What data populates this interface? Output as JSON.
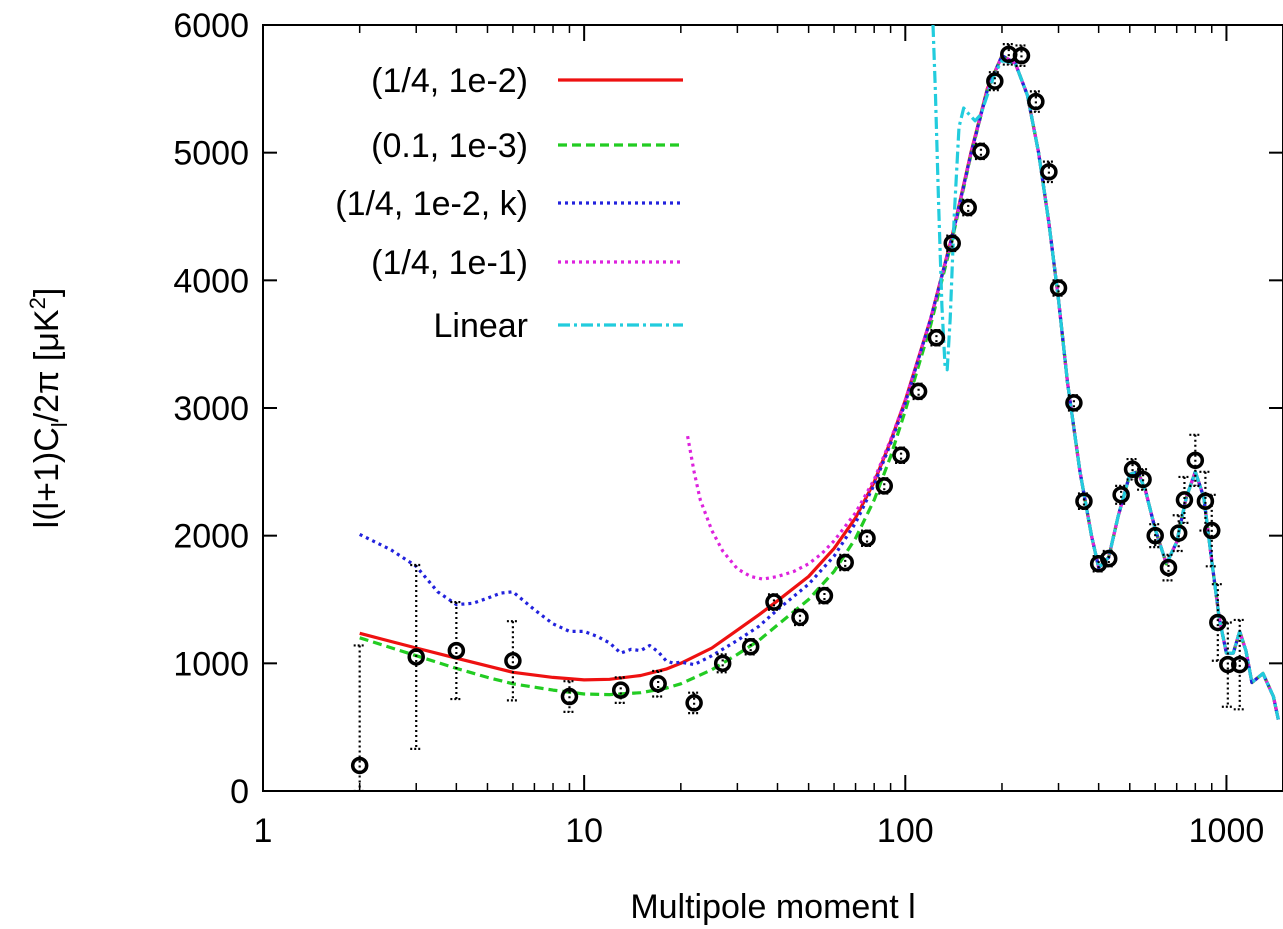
{
  "chart_data": {
    "type": "line",
    "xlabel": "Multipole moment l",
    "ylabel_parts": {
      "prefix": "l(l+1)C",
      "sub": "l",
      "mid": "/2π [μK",
      "sup": "2",
      "suffix": "]"
    },
    "x_scale": "log",
    "xlim": [
      1,
      1500
    ],
    "ylim": [
      0,
      6000
    ],
    "x_ticks": [
      1,
      10,
      100,
      1000
    ],
    "x_tick_labels": [
      "1",
      "10",
      "100",
      "1000"
    ],
    "y_ticks": [
      0,
      1000,
      2000,
      3000,
      4000,
      5000,
      6000
    ],
    "y_tick_labels": [
      "0",
      "1000",
      "2000",
      "3000",
      "4000",
      "5000",
      "6000"
    ],
    "legend_position": "top-left",
    "series": [
      {
        "name": "(1/4, 1e-2)",
        "color": "#ee1111",
        "dash": "solid",
        "x": [
          2,
          3,
          4,
          5,
          6,
          8,
          10,
          12,
          15,
          18,
          20,
          25,
          30,
          35,
          40,
          50,
          60,
          70,
          80,
          90,
          100,
          120,
          140,
          160,
          180,
          200,
          220,
          240,
          260,
          280,
          300,
          320,
          350,
          380,
          400,
          430,
          460,
          500,
          530,
          560,
          600,
          650,
          700,
          750,
          800,
          850,
          900,
          950,
          1000,
          1050,
          1100,
          1150,
          1200,
          1300,
          1400,
          1450
        ],
        "y": [
          1235,
          1120,
          1040,
          980,
          930,
          890,
          870,
          875,
          905,
          955,
          1000,
          1120,
          1260,
          1380,
          1490,
          1680,
          1900,
          2140,
          2420,
          2740,
          3060,
          3700,
          4350,
          5000,
          5500,
          5760,
          5700,
          5450,
          5000,
          4450,
          3850,
          3200,
          2500,
          2000,
          1750,
          1830,
          2150,
          2480,
          2500,
          2350,
          2050,
          1780,
          1950,
          2300,
          2500,
          2300,
          1800,
          1350,
          1080,
          1080,
          1250,
          1100,
          850,
          920,
          740,
          560
        ]
      },
      {
        "name": "(0.1, 1e-3)",
        "color": "#22cc22",
        "dash": "dashed",
        "x": [
          2,
          3,
          4,
          5,
          6,
          8,
          10,
          12,
          15,
          18,
          20,
          25,
          30,
          35,
          40,
          50,
          60,
          70,
          80,
          90,
          100,
          120,
          140,
          160,
          180,
          200,
          220,
          240,
          260,
          280,
          300,
          320,
          350,
          380,
          400,
          430,
          460,
          500,
          530,
          560,
          600,
          650,
          700,
          750,
          800,
          850,
          900,
          950,
          1000,
          1050,
          1100,
          1150,
          1200,
          1300,
          1400,
          1450
        ],
        "y": [
          1200,
          1060,
          960,
          890,
          840,
          790,
          760,
          755,
          770,
          805,
          840,
          950,
          1070,
          1180,
          1300,
          1500,
          1720,
          1980,
          2280,
          2620,
          2980,
          3650,
          4320,
          4980,
          5490,
          5760,
          5700,
          5450,
          5000,
          4450,
          3850,
          3200,
          2500,
          2000,
          1750,
          1830,
          2150,
          2480,
          2500,
          2350,
          2050,
          1780,
          1950,
          2300,
          2500,
          2300,
          1800,
          1350,
          1080,
          1080,
          1250,
          1100,
          850,
          920,
          740,
          560
        ]
      },
      {
        "name": "(1/4, 1e-2, k)",
        "color": "#2222dd",
        "dash": "dotted",
        "x": [
          2,
          2.5,
          3,
          3.5,
          4,
          4.5,
          5,
          5.5,
          6,
          7,
          8,
          9,
          10,
          11,
          12,
          13,
          14,
          15,
          16,
          17,
          18,
          19,
          20,
          22,
          25,
          30,
          35,
          40,
          50,
          60,
          70,
          80,
          90,
          100,
          120,
          140,
          160,
          180,
          200,
          220,
          240,
          260,
          280,
          300,
          320,
          350,
          380,
          400,
          430,
          460,
          500,
          530,
          560,
          600,
          650,
          700,
          750,
          800,
          850,
          900,
          950,
          1000,
          1050,
          1100,
          1150,
          1200,
          1300,
          1400,
          1450
        ],
        "y": [
          2010,
          1890,
          1760,
          1560,
          1460,
          1470,
          1510,
          1550,
          1560,
          1420,
          1310,
          1250,
          1250,
          1210,
          1160,
          1080,
          1110,
          1100,
          1140,
          1090,
          1020,
          1000,
          1010,
          990,
          1060,
          1180,
          1290,
          1420,
          1620,
          1840,
          2100,
          2400,
          2720,
          3040,
          3700,
          4340,
          4990,
          5490,
          5760,
          5700,
          5450,
          5000,
          4450,
          3850,
          3200,
          2500,
          2000,
          1750,
          1830,
          2150,
          2480,
          2500,
          2350,
          2050,
          1780,
          1950,
          2300,
          2500,
          2300,
          1800,
          1350,
          1080,
          1080,
          1250,
          1100,
          850,
          920,
          740,
          560
        ]
      },
      {
        "name": "(1/4, 1e-1)",
        "color": "#dd22dd",
        "dash": "dotted",
        "x": [
          21,
          22,
          23,
          25,
          27,
          30,
          33,
          36,
          40,
          45,
          50,
          55,
          60,
          70,
          80,
          90,
          100,
          120,
          140,
          160,
          180,
          200,
          220,
          240,
          260,
          280,
          300,
          320,
          350,
          380,
          400,
          430,
          460,
          500,
          530,
          560,
          600,
          650,
          700,
          750,
          800,
          850,
          900,
          950,
          1000,
          1050,
          1100,
          1150,
          1200,
          1300,
          1400,
          1450
        ],
        "y": [
          2780,
          2500,
          2280,
          2040,
          1880,
          1740,
          1680,
          1660,
          1680,
          1720,
          1780,
          1860,
          1960,
          2180,
          2440,
          2750,
          3060,
          3700,
          4340,
          4990,
          5490,
          5760,
          5700,
          5450,
          5000,
          4450,
          3850,
          3200,
          2500,
          2000,
          1750,
          1830,
          2150,
          2480,
          2500,
          2350,
          2050,
          1780,
          1950,
          2300,
          2500,
          2300,
          1800,
          1350,
          1080,
          1080,
          1250,
          1100,
          850,
          920,
          740,
          560
        ]
      },
      {
        "name": "Linear",
        "color": "#22ccdd",
        "dash": "dashdot",
        "x": [
          122,
          124,
          127,
          130,
          133,
          135,
          138,
          142,
          147,
          152,
          158,
          165,
          172,
          180,
          190,
          200,
          220,
          240,
          260,
          280,
          300,
          320,
          350,
          380,
          400,
          430,
          460,
          500,
          530,
          560,
          600,
          650,
          700,
          750,
          800,
          850,
          900,
          950,
          1000,
          1050,
          1100,
          1150,
          1200,
          1300,
          1400,
          1450
        ],
        "y": [
          6000,
          5500,
          4600,
          3800,
          3320,
          3300,
          3700,
          4500,
          5200,
          5350,
          5300,
          5250,
          5300,
          5450,
          5620,
          5720,
          5700,
          5450,
          5000,
          4450,
          3850,
          3200,
          2500,
          2000,
          1750,
          1830,
          2150,
          2480,
          2500,
          2350,
          2050,
          1780,
          1950,
          2300,
          2500,
          2300,
          1800,
          1350,
          1080,
          1080,
          1250,
          1100,
          850,
          920,
          740,
          560
        ]
      }
    ],
    "data_points": {
      "x": [
        2,
        3,
        4,
        6,
        9,
        13,
        17,
        22,
        27,
        33,
        39,
        47,
        56,
        65,
        76,
        86,
        97,
        110,
        125,
        140,
        157,
        172,
        190,
        210,
        230,
        255,
        280,
        300,
        335,
        360,
        400,
        430,
        470,
        510,
        550,
        600,
        660,
        710,
        740,
        800,
        860,
        900,
        940,
        1010,
        1100
      ],
      "y": [
        200,
        1050,
        1100,
        1020,
        740,
        790,
        840,
        690,
        1000,
        1130,
        1480,
        1360,
        1530,
        1790,
        1980,
        2390,
        2630,
        3130,
        3550,
        4290,
        4570,
        5010,
        5560,
        5770,
        5760,
        5400,
        4850,
        3940,
        3040,
        2270,
        1780,
        1820,
        2320,
        2520,
        2440,
        2000,
        1750,
        2020,
        2280,
        2590,
        2270,
        2040,
        1320,
        990,
        990
      ],
      "err_up": [
        940,
        720,
        380,
        310,
        120,
        100,
        100,
        80,
        70,
        60,
        60,
        60,
        60,
        60,
        60,
        60,
        60,
        60,
        60,
        60,
        60,
        60,
        70,
        80,
        80,
        80,
        80,
        60,
        60,
        60,
        60,
        60,
        70,
        80,
        80,
        90,
        100,
        140,
        180,
        200,
        230,
        280,
        300,
        330,
        350
      ],
      "err_down": [
        200,
        720,
        380,
        310,
        120,
        100,
        100,
        80,
        70,
        60,
        60,
        60,
        60,
        60,
        60,
        60,
        60,
        60,
        60,
        60,
        60,
        60,
        70,
        80,
        80,
        80,
        80,
        60,
        60,
        60,
        60,
        60,
        70,
        80,
        80,
        90,
        100,
        140,
        180,
        200,
        230,
        280,
        300,
        330,
        350
      ]
    }
  }
}
